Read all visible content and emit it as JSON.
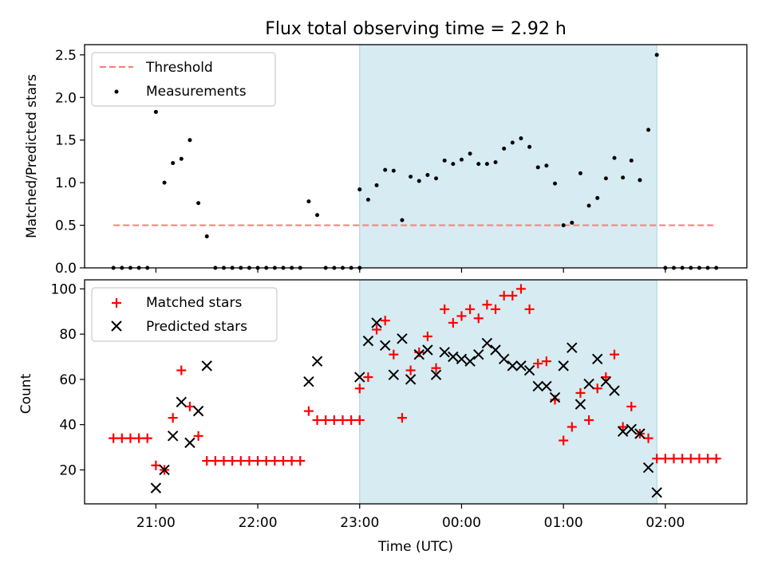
{
  "figure": {
    "title": "Flux total observing time = 2.92 h",
    "xlabel": "Time (UTC)",
    "x_ticks": [
      "21:00",
      "22:00",
      "23:00",
      "00:00",
      "01:00",
      "02:00"
    ],
    "span_color": "#add8e6"
  },
  "chart_data": [
    {
      "type": "scatter",
      "panel": "top",
      "ylabel": "Matched/Predicted stars",
      "ylim": [
        0,
        2.62
      ],
      "y_ticks": [
        "0.0",
        "0.5",
        "1.0",
        "1.5",
        "2.0",
        "2.5"
      ],
      "x_unit": "hours after 21:00 UTC",
      "xlim": [
        -0.7,
        5.8
      ],
      "shaded_interval": [
        "23:00",
        "01:55"
      ],
      "legend": {
        "position": "upper left",
        "entries": [
          "Threshold",
          "Measurements"
        ]
      },
      "threshold": {
        "name": "Threshold",
        "value": 0.5,
        "color": "#ff7f7f",
        "style": "dashed",
        "x_range": [
          "20:35",
          "02:30"
        ]
      },
      "measurements": {
        "name": "Measurements",
        "color": "#000000",
        "points": [
          [
            "20:35",
            0
          ],
          [
            "20:40",
            0
          ],
          [
            "20:45",
            0
          ],
          [
            "20:50",
            0
          ],
          [
            "20:55",
            0
          ],
          [
            "21:00",
            1.83
          ],
          [
            "21:05",
            1.0
          ],
          [
            "21:10",
            1.23
          ],
          [
            "21:15",
            1.28
          ],
          [
            "21:20",
            1.5
          ],
          [
            "21:25",
            0.76
          ],
          [
            "21:30",
            0.37
          ],
          [
            "21:35",
            0
          ],
          [
            "21:40",
            0
          ],
          [
            "21:45",
            0
          ],
          [
            "21:50",
            0
          ],
          [
            "21:55",
            0
          ],
          [
            "22:00",
            0
          ],
          [
            "22:05",
            0
          ],
          [
            "22:10",
            0
          ],
          [
            "22:15",
            0
          ],
          [
            "22:20",
            0
          ],
          [
            "22:25",
            0
          ],
          [
            "22:30",
            0.78
          ],
          [
            "22:35",
            0.62
          ],
          [
            "22:40",
            0
          ],
          [
            "22:45",
            0
          ],
          [
            "22:50",
            0
          ],
          [
            "22:55",
            0
          ],
          [
            "23:00",
            0
          ],
          [
            "23:00",
            0.92
          ],
          [
            "23:05",
            0.8
          ],
          [
            "23:10",
            0.97
          ],
          [
            "23:15",
            1.15
          ],
          [
            "23:20",
            1.14
          ],
          [
            "23:25",
            0.56
          ],
          [
            "23:30",
            1.07
          ],
          [
            "23:35",
            1.02
          ],
          [
            "23:40",
            1.09
          ],
          [
            "23:45",
            1.05
          ],
          [
            "23:50",
            1.26
          ],
          [
            "23:55",
            1.22
          ],
          [
            "00:00",
            1.27
          ],
          [
            "00:05",
            1.34
          ],
          [
            "00:10",
            1.22
          ],
          [
            "00:15",
            1.22
          ],
          [
            "00:20",
            1.24
          ],
          [
            "00:25",
            1.4
          ],
          [
            "00:30",
            1.47
          ],
          [
            "00:35",
            1.52
          ],
          [
            "00:40",
            1.42
          ],
          [
            "00:45",
            1.18
          ],
          [
            "00:50",
            1.2
          ],
          [
            "00:55",
            0.99
          ],
          [
            "01:00",
            0.5
          ],
          [
            "01:05",
            0.53
          ],
          [
            "01:10",
            1.11
          ],
          [
            "01:15",
            0.73
          ],
          [
            "01:20",
            0.82
          ],
          [
            "01:25",
            1.05
          ],
          [
            "01:30",
            1.29
          ],
          [
            "01:35",
            1.06
          ],
          [
            "01:40",
            1.26
          ],
          [
            "01:45",
            1.03
          ],
          [
            "01:50",
            1.62
          ],
          [
            "01:55",
            2.5
          ],
          [
            "02:00",
            0
          ],
          [
            "02:05",
            0
          ],
          [
            "02:10",
            0
          ],
          [
            "02:15",
            0
          ],
          [
            "02:20",
            0
          ],
          [
            "02:25",
            0
          ],
          [
            "02:30",
            0
          ]
        ]
      }
    },
    {
      "type": "scatter",
      "panel": "bottom",
      "ylabel": "Count",
      "ylim": [
        5,
        104
      ],
      "y_ticks": [
        "20",
        "40",
        "60",
        "80",
        "100"
      ],
      "x_unit": "hours after 21:00 UTC",
      "xlim": [
        -0.7,
        5.8
      ],
      "shaded_interval": [
        "23:00",
        "01:55"
      ],
      "legend": {
        "position": "upper left",
        "entries": [
          "Matched stars",
          "Predicted stars"
        ]
      },
      "series": [
        {
          "name": "Matched stars",
          "marker": "+",
          "color": "#ff0000",
          "points": [
            [
              "20:35",
              34
            ],
            [
              "20:40",
              34
            ],
            [
              "20:45",
              34
            ],
            [
              "20:50",
              34
            ],
            [
              "20:55",
              34
            ],
            [
              "21:00",
              22
            ],
            [
              "21:05",
              20
            ],
            [
              "21:10",
              43
            ],
            [
              "21:15",
              64
            ],
            [
              "21:20",
              48
            ],
            [
              "21:25",
              35
            ],
            [
              "21:30",
              24
            ],
            [
              "21:35",
              24
            ],
            [
              "21:40",
              24
            ],
            [
              "21:45",
              24
            ],
            [
              "21:50",
              24
            ],
            [
              "21:55",
              24
            ],
            [
              "22:00",
              24
            ],
            [
              "22:05",
              24
            ],
            [
              "22:10",
              24
            ],
            [
              "22:15",
              24
            ],
            [
              "22:20",
              24
            ],
            [
              "22:25",
              24
            ],
            [
              "22:30",
              46
            ],
            [
              "22:35",
              42
            ],
            [
              "22:40",
              42
            ],
            [
              "22:45",
              42
            ],
            [
              "22:50",
              42
            ],
            [
              "22:55",
              42
            ],
            [
              "23:00",
              42
            ],
            [
              "23:00",
              56
            ],
            [
              "23:05",
              61
            ],
            [
              "23:10",
              82
            ],
            [
              "23:15",
              86
            ],
            [
              "23:20",
              71
            ],
            [
              "23:25",
              43
            ],
            [
              "23:30",
              64
            ],
            [
              "23:35",
              72
            ],
            [
              "23:40",
              79
            ],
            [
              "23:45",
              65
            ],
            [
              "23:50",
              91
            ],
            [
              "23:55",
              85
            ],
            [
              "00:00",
              88
            ],
            [
              "00:05",
              91
            ],
            [
              "00:10",
              87
            ],
            [
              "00:15",
              93
            ],
            [
              "00:20",
              91
            ],
            [
              "00:25",
              97
            ],
            [
              "00:30",
              97
            ],
            [
              "00:35",
              100
            ],
            [
              "00:40",
              91
            ],
            [
              "00:45",
              67
            ],
            [
              "00:50",
              68
            ],
            [
              "00:55",
              51
            ],
            [
              "01:00",
              33
            ],
            [
              "01:05",
              39
            ],
            [
              "01:10",
              54
            ],
            [
              "01:15",
              42
            ],
            [
              "01:20",
              56
            ],
            [
              "01:25",
              61
            ],
            [
              "01:30",
              71
            ],
            [
              "01:35",
              39
            ],
            [
              "01:40",
              48
            ],
            [
              "01:45",
              36
            ],
            [
              "01:50",
              34
            ],
            [
              "01:55",
              25
            ],
            [
              "02:00",
              25
            ],
            [
              "02:05",
              25
            ],
            [
              "02:10",
              25
            ],
            [
              "02:15",
              25
            ],
            [
              "02:20",
              25
            ],
            [
              "02:25",
              25
            ],
            [
              "02:30",
              25
            ]
          ]
        },
        {
          "name": "Predicted stars",
          "marker": "x",
          "color": "#000000",
          "points": [
            [
              "21:00",
              12
            ],
            [
              "21:05",
              20
            ],
            [
              "21:10",
              35
            ],
            [
              "21:15",
              50
            ],
            [
              "21:20",
              32
            ],
            [
              "21:25",
              46
            ],
            [
              "21:30",
              66
            ],
            [
              "22:30",
              59
            ],
            [
              "22:35",
              68
            ],
            [
              "23:00",
              61
            ],
            [
              "23:05",
              77
            ],
            [
              "23:10",
              85
            ],
            [
              "23:15",
              75
            ],
            [
              "23:20",
              62
            ],
            [
              "23:25",
              78
            ],
            [
              "23:30",
              60
            ],
            [
              "23:35",
              71
            ],
            [
              "23:40",
              73
            ],
            [
              "23:45",
              62
            ],
            [
              "23:50",
              72
            ],
            [
              "23:55",
              70
            ],
            [
              "00:00",
              69
            ],
            [
              "00:05",
              68
            ],
            [
              "00:10",
              71
            ],
            [
              "00:15",
              76
            ],
            [
              "00:20",
              73
            ],
            [
              "00:25",
              69
            ],
            [
              "00:30",
              66
            ],
            [
              "00:35",
              66
            ],
            [
              "00:40",
              64
            ],
            [
              "00:45",
              57
            ],
            [
              "00:50",
              57
            ],
            [
              "00:55",
              52
            ],
            [
              "01:00",
              66
            ],
            [
              "01:05",
              74
            ],
            [
              "01:10",
              49
            ],
            [
              "01:15",
              58
            ],
            [
              "01:20",
              69
            ],
            [
              "01:25",
              59
            ],
            [
              "01:30",
              55
            ],
            [
              "01:35",
              37
            ],
            [
              "01:40",
              38
            ],
            [
              "01:45",
              36
            ],
            [
              "01:50",
              21
            ],
            [
              "01:55",
              10
            ]
          ]
        }
      ]
    }
  ]
}
